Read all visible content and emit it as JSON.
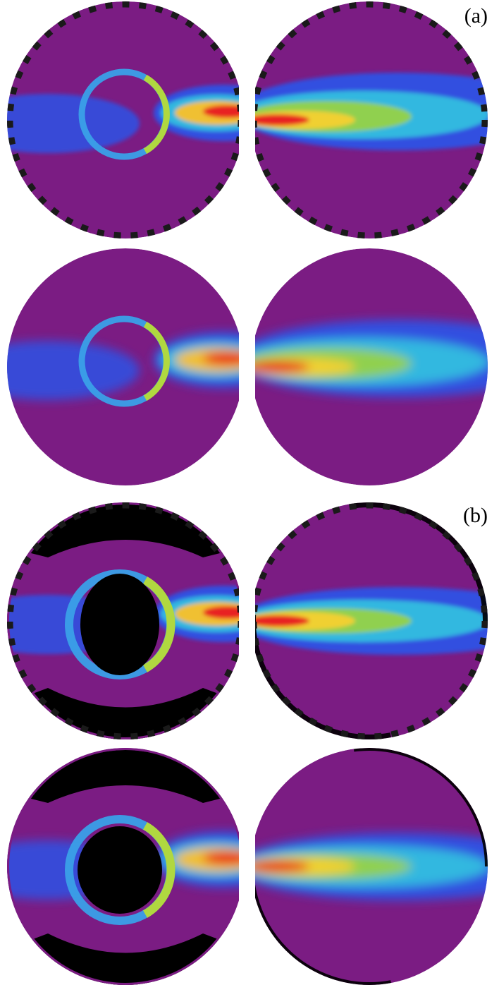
{
  "labels": [
    "(a)",
    "(b)"
  ]
}
